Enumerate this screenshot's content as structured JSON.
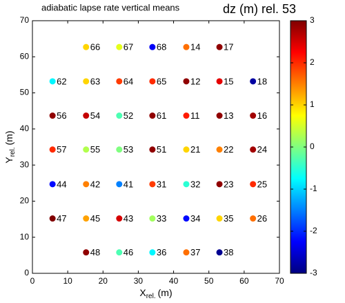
{
  "chart_data": {
    "type": "scatter",
    "title": "adiabatic lapse rate vertical means",
    "colorbar_title": "dz (m) rel. 53",
    "x_label": {
      "main": "X",
      "sub": "rel.",
      "unit": "(m)"
    },
    "y_label": {
      "main": "Y",
      "sub": "rel.",
      "unit": "(m)"
    },
    "xlim": [
      0,
      70
    ],
    "xticks": [
      0,
      10,
      20,
      30,
      40,
      50,
      60,
      70
    ],
    "ylim": [
      0,
      70
    ],
    "yticks": [
      0,
      10,
      20,
      30,
      40,
      50,
      60,
      70
    ],
    "clim": [
      -3,
      3
    ],
    "cticks": [
      -3,
      -2,
      -1,
      0,
      1,
      2,
      3
    ],
    "colormap": "jet",
    "x": [
      15.2,
      24.6,
      34,
      43.6,
      53,
      5.7,
      15.2,
      24.6,
      34,
      43.6,
      53,
      62.5,
      5.7,
      15.2,
      24.6,
      34,
      43.6,
      53,
      62.5,
      5.7,
      15.2,
      24.6,
      34,
      43.6,
      53,
      62.5,
      5.7,
      15.2,
      24.6,
      34,
      43.6,
      53,
      62.5,
      5.7,
      15.2,
      24.6,
      34,
      43.6,
      53,
      62.5,
      15.2,
      24.6,
      34,
      43.6,
      53
    ],
    "y": [
      62.7,
      62.7,
      62.7,
      62.7,
      62.7,
      53.2,
      53.2,
      53.2,
      53.2,
      53.2,
      53.2,
      53.2,
      43.7,
      43.7,
      43.7,
      43.7,
      43.7,
      43.7,
      43.7,
      34.3,
      34.3,
      34.3,
      34.3,
      34.3,
      34.3,
      34.3,
      24.7,
      24.7,
      24.7,
      24.7,
      24.7,
      24.7,
      24.7,
      15.2,
      15.2,
      15.2,
      15.2,
      15.2,
      15.2,
      15.2,
      5.8,
      5.8,
      5.8,
      5.8,
      5.8
    ],
    "labels": [
      66,
      67,
      68,
      14,
      17,
      62,
      63,
      64,
      65,
      12,
      15,
      18,
      56,
      54,
      52,
      61,
      11,
      13,
      16,
      57,
      55,
      53,
      51,
      21,
      22,
      24,
      44,
      42,
      41,
      31,
      32,
      23,
      25,
      47,
      45,
      43,
      33,
      34,
      35,
      26,
      48,
      46,
      36,
      37,
      38
    ],
    "c": [
      1.0,
      0.6,
      -2.3,
      1.6,
      2.9,
      -0.8,
      1.0,
      1.9,
      2.0,
      2.9,
      2.4,
      -2.8,
      2.9,
      2.6,
      -0.3,
      2.9,
      2.1,
      2.9,
      2.8,
      2.0,
      0.3,
      0.0,
      2.9,
      1.0,
      1.5,
      2.8,
      -2.2,
      1.5,
      -1.5,
      1.9,
      -0.5,
      2.9,
      2.0,
      3.0,
      1.3,
      2.5,
      0.2,
      -2.2,
      1.0,
      1.6,
      2.9,
      -0.3,
      -0.8,
      1.6,
      -2.9
    ]
  }
}
